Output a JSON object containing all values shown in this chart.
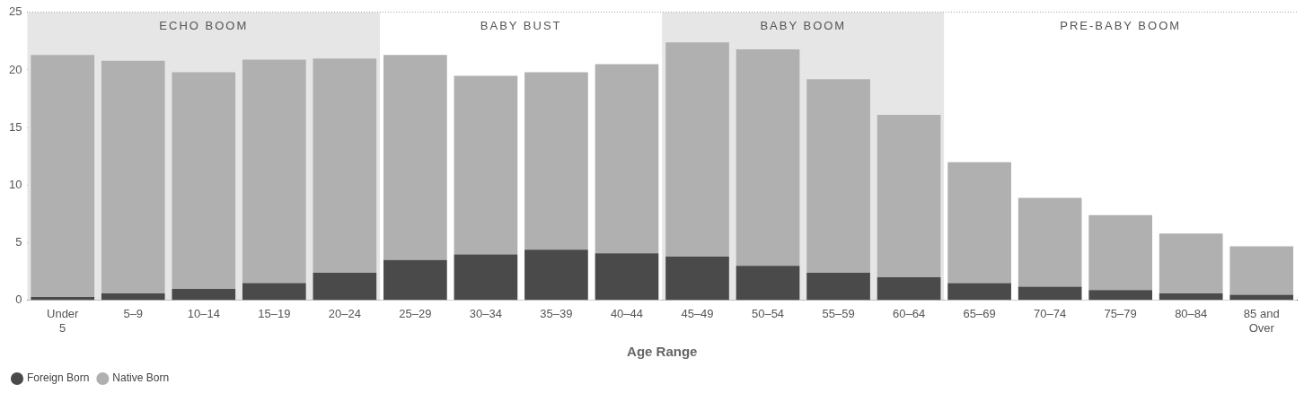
{
  "chart_data": {
    "type": "bar",
    "stacked": true,
    "xlabel": "Age Range",
    "categories": [
      "Under 5",
      "5–9",
      "10–14",
      "15–19",
      "20–24",
      "25–29",
      "30–34",
      "35–39",
      "40–44",
      "45–49",
      "50–54",
      "55–59",
      "60–64",
      "65–69",
      "70–74",
      "75–79",
      "80–84",
      "85 and Over"
    ],
    "series": [
      {
        "name": "Foreign Born",
        "color": "#4a4a4a",
        "values": [
          0.3,
          0.6,
          1.0,
          1.5,
          2.4,
          3.5,
          4.0,
          4.4,
          4.1,
          3.8,
          3.0,
          2.4,
          2.0,
          1.5,
          1.2,
          0.9,
          0.6,
          0.5
        ]
      },
      {
        "name": "Native Born",
        "color": "#b0b0b0",
        "values": [
          21.0,
          20.2,
          18.8,
          19.4,
          18.6,
          17.8,
          15.5,
          15.4,
          16.4,
          18.6,
          18.8,
          16.8,
          14.1,
          10.5,
          7.7,
          6.5,
          5.2,
          4.2
        ]
      }
    ],
    "ylim": [
      0,
      25
    ],
    "yticks": [
      0,
      5,
      10,
      15,
      20,
      25
    ],
    "grid": "y",
    "legend": "bottom left",
    "bands": [
      {
        "axis": "x",
        "from": "Under 5",
        "to": "20–24",
        "label": "ECHO BOOM",
        "color": "#e6e6e6"
      },
      {
        "axis": "x",
        "from": "25–29",
        "to": "40–44",
        "label": "BABY BUST",
        "color": "#ffffff"
      },
      {
        "axis": "x",
        "from": "45–49",
        "to": "60–64",
        "label": "BABY BOOM",
        "color": "#e6e6e6"
      },
      {
        "axis": "x",
        "from": "65–69",
        "to": "85 and Over",
        "label": "PRE-BABY BOOM",
        "color": "#ffffff"
      }
    ]
  }
}
